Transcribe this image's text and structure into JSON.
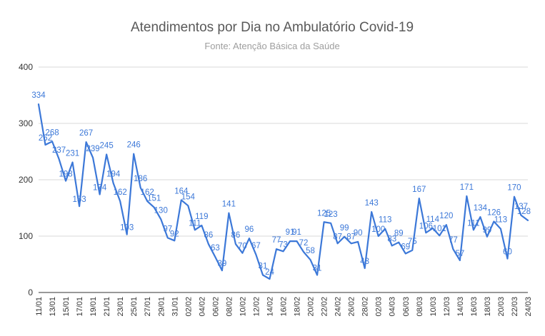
{
  "chart_data": {
    "type": "line",
    "title": "Atendimentos por Dia no Ambulatório Covid-19",
    "subtitle": "Fonte: Atenção Básica da Saúde",
    "xlabel": "",
    "ylabel": "",
    "ylim": [
      0,
      400
    ],
    "yticks": [
      0,
      100,
      200,
      300,
      400
    ],
    "grid": true,
    "legend": "none",
    "line_color": "#3c78d8",
    "label_color": "#3c78d8",
    "x": [
      "11/01",
      "12/01",
      "13/01",
      "14/01",
      "15/01",
      "16/01",
      "17/01",
      "18/01",
      "19/01",
      "20/01",
      "21/01",
      "22/01",
      "23/01",
      "24/01",
      "25/01",
      "26/01",
      "27/01",
      "28/01",
      "29/01",
      "30/01",
      "31/01",
      "01/02",
      "02/02",
      "03/02",
      "04/02",
      "05/02",
      "06/02",
      "07/02",
      "08/02",
      "09/02",
      "10/02",
      "11/02",
      "12/02",
      "13/02",
      "14/02",
      "15/02",
      "16/02",
      "17/02",
      "18/02",
      "19/02",
      "20/02",
      "21/02",
      "22/02",
      "23/02",
      "24/02",
      "25/02",
      "26/02",
      "27/02",
      "28/02",
      "01/03",
      "02/03",
      "03/03",
      "04/03",
      "05/03",
      "06/03",
      "07/03",
      "08/03",
      "09/03",
      "10/03",
      "11/03",
      "12/03",
      "13/03",
      "14/03",
      "15/03",
      "16/03",
      "17/03",
      "18/03",
      "19/03",
      "20/03",
      "21/03",
      "22/03",
      "23/03",
      "24/03"
    ],
    "x_tick_labels": [
      "11/01",
      "13/01",
      "15/01",
      "17/01",
      "19/01",
      "21/01",
      "23/01",
      "25/01",
      "27/01",
      "29/01",
      "31/01",
      "02/02",
      "04/02",
      "06/02",
      "08/02",
      "10/02",
      "12/02",
      "14/02",
      "16/02",
      "18/02",
      "20/02",
      "22/02",
      "24/02",
      "26/02",
      "28/02",
      "02/03",
      "04/03",
      "06/03",
      "08/03",
      "10/03",
      "12/03",
      "14/03",
      "16/03",
      "18/03",
      "20/03",
      "22/03",
      "24/03"
    ],
    "values": [
      334,
      262,
      268,
      237,
      198,
      231,
      153,
      267,
      239,
      174,
      245,
      194,
      162,
      103,
      246,
      186,
      162,
      151,
      130,
      97,
      92,
      164,
      154,
      111,
      119,
      86,
      63,
      39,
      141,
      86,
      70,
      96,
      67,
      31,
      24,
      77,
      73,
      91,
      91,
      72,
      58,
      31,
      125,
      123,
      87,
      99,
      87,
      90,
      43,
      143,
      100,
      113,
      83,
      89,
      69,
      75,
      167,
      106,
      114,
      101,
      120,
      77,
      57,
      171,
      111,
      134,
      99,
      126,
      113,
      60,
      170,
      137,
      128
    ]
  }
}
